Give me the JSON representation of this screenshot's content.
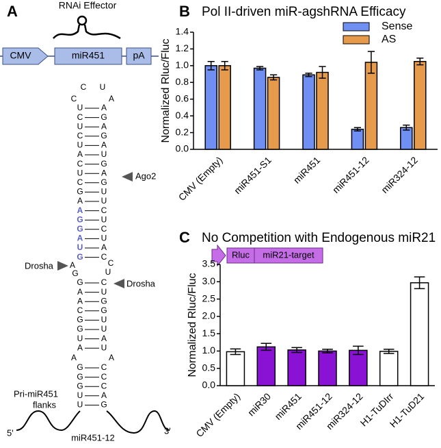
{
  "panel_labels": [
    "A",
    "B",
    "C"
  ],
  "construct": {
    "title": "RNAi Effector",
    "elements": [
      "CMV",
      "miR451",
      "pA"
    ]
  },
  "hairpin": {
    "loop": [
      "C",
      "U",
      "C",
      "A"
    ],
    "upper_stem": [
      [
        "U",
        "A"
      ],
      [
        "C",
        "G"
      ],
      [
        "U",
        "A"
      ],
      [
        "C",
        "G"
      ],
      [
        "U",
        "A"
      ],
      [
        "A",
        "U"
      ],
      [
        "C",
        "G"
      ],
      [
        "U",
        "A"
      ],
      [
        "C",
        "G"
      ],
      [
        "G",
        "U"
      ],
      [
        "A",
        "U"
      ],
      [
        "A",
        "C"
      ],
      [
        "G",
        "U"
      ],
      [
        "G",
        "C"
      ],
      [
        "A",
        "U"
      ],
      [
        "U",
        "A"
      ],
      [
        "G",
        "C"
      ]
    ],
    "bulge": [
      "A",
      "C",
      "G",
      "U"
    ],
    "lower_stem": [
      [
        "G",
        "C"
      ],
      [
        "A",
        "U"
      ],
      [
        "A",
        "G"
      ],
      [
        "C",
        "G"
      ],
      [
        "G",
        "U"
      ],
      [
        "G",
        "U"
      ],
      [
        "U",
        "A"
      ],
      [
        "A",
        "U"
      ]
    ],
    "internal_loop": [
      "A",
      "A"
    ],
    "basal_stem": [
      [
        "G",
        "C"
      ],
      [
        "G",
        "C"
      ],
      [
        "G",
        "C"
      ],
      [
        "U",
        "A"
      ],
      [
        "U",
        "G"
      ]
    ],
    "annotations": {
      "ago2": "Ago2",
      "drosha_left": "Drosha",
      "drosha_right": "Drosha",
      "flanks": [
        "Pri-miR451",
        "flanks"
      ],
      "five_prime": "5'",
      "three_prime": "3'",
      "product": "miR451-12"
    }
  },
  "chart_data": [
    {
      "type": "bar",
      "title": "Pol II-driven miR-agshRNA Efficacy",
      "y_label": "Normalized Rluc/Fluc",
      "categories": [
        "CMV (Empty)",
        "miR451-S1",
        "miR451",
        "miR451-12",
        "miR324-12"
      ],
      "series": [
        {
          "name": "Sense",
          "color": "#6f8ff2",
          "values": [
            1.0,
            0.97,
            0.89,
            0.24,
            0.26
          ],
          "errors": [
            0.05,
            0.02,
            0.02,
            0.02,
            0.03
          ]
        },
        {
          "name": "AS",
          "color": "#e59a4c",
          "values": [
            1.0,
            0.86,
            0.92,
            1.04,
            1.05
          ],
          "errors": [
            0.05,
            0.03,
            0.07,
            0.13,
            0.04
          ]
        }
      ],
      "ylim": [
        0,
        1.4
      ],
      "yticks": [
        {
          "value": 0,
          "label": "0.0"
        },
        0.2,
        0.4,
        0.6,
        0.8,
        {
          "value": 1,
          "label": "1.0"
        },
        1.2,
        1.4
      ],
      "legend": "upper right"
    },
    {
      "type": "bar",
      "title": "No Competition with Endogenous miR21",
      "y_label": "Normalized Rluc/Fluc",
      "inset": [
        "Rluc",
        "miR21-target"
      ],
      "categories": [
        "CMV (Empty)",
        "miR30",
        "miR451",
        "miR451-12",
        "miR324-12",
        "H1-TuDIrr",
        "H1-TuD21"
      ],
      "values": [
        0.98,
        1.12,
        1.03,
        1.0,
        1.02,
        0.99,
        2.97
      ],
      "errors": [
        0.08,
        0.1,
        0.07,
        0.05,
        0.12,
        0.06,
        0.17
      ],
      "colors": [
        "#ffffff",
        "#8a12d4",
        "#8a12d4",
        "#8a12d4",
        "#8a12d4",
        "#ffffff",
        "#ffffff"
      ],
      "ylim": [
        0,
        3.5
      ],
      "yticks": [
        {
          "value": 0,
          "label": "0.0"
        },
        0.5,
        {
          "value": 1,
          "label": "1.0"
        },
        1.5,
        {
          "value": 2,
          "label": "2.0"
        },
        2.5,
        {
          "value": 3,
          "label": "3.0"
        },
        3.5
      ]
    }
  ]
}
